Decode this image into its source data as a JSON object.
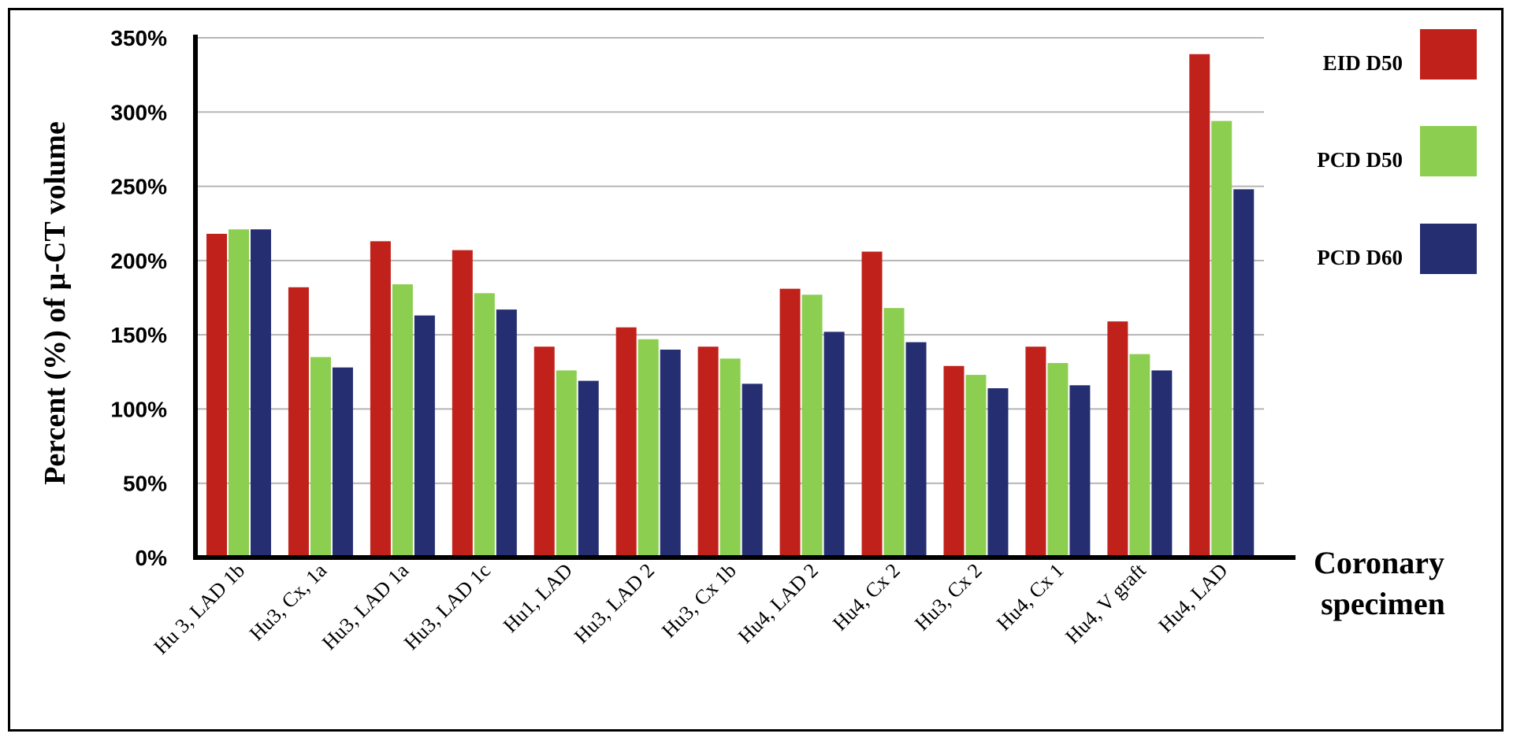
{
  "chart_data": {
    "type": "bar",
    "title": "",
    "ylabel": "Percent (%) of µ-CT volume",
    "xlabel_lines": [
      "Coronary",
      "specimen"
    ],
    "ylim": [
      0,
      350
    ],
    "yticks": [
      0,
      50,
      100,
      150,
      200,
      250,
      300,
      350
    ],
    "ytick_labels": [
      "0%",
      "50%",
      "100%",
      "150%",
      "200%",
      "250%",
      "300%",
      "350%"
    ],
    "grid": true,
    "legend_position": "right",
    "categories": [
      "Hu 3, LAD 1b",
      "Hu3, Cx, 1a",
      "Hu3, LAD 1a",
      "Hu3, LAD 1c",
      "Hu1, LAD",
      "Hu3, LAD 2",
      "Hu3, Cx 1b",
      "Hu4, LAD 2",
      "Hu4, Cx 2",
      "Hu3, Cx 2",
      "Hu4, Cx 1",
      "Hu4, V graft",
      "Hu4, LAD"
    ],
    "series": [
      {
        "name": "EID D50",
        "color": "#c0221b",
        "values": [
          218,
          182,
          213,
          207,
          142,
          155,
          142,
          181,
          206,
          129,
          142,
          159,
          339
        ]
      },
      {
        "name": "PCD D50",
        "color": "#8ccf50",
        "values": [
          221,
          135,
          184,
          178,
          126,
          147,
          134,
          177,
          168,
          123,
          131,
          137,
          294
        ]
      },
      {
        "name": "PCD D60",
        "color": "#262e72",
        "values": [
          221,
          128,
          163,
          167,
          119,
          140,
          117,
          152,
          145,
          114,
          116,
          126,
          248
        ]
      }
    ]
  }
}
